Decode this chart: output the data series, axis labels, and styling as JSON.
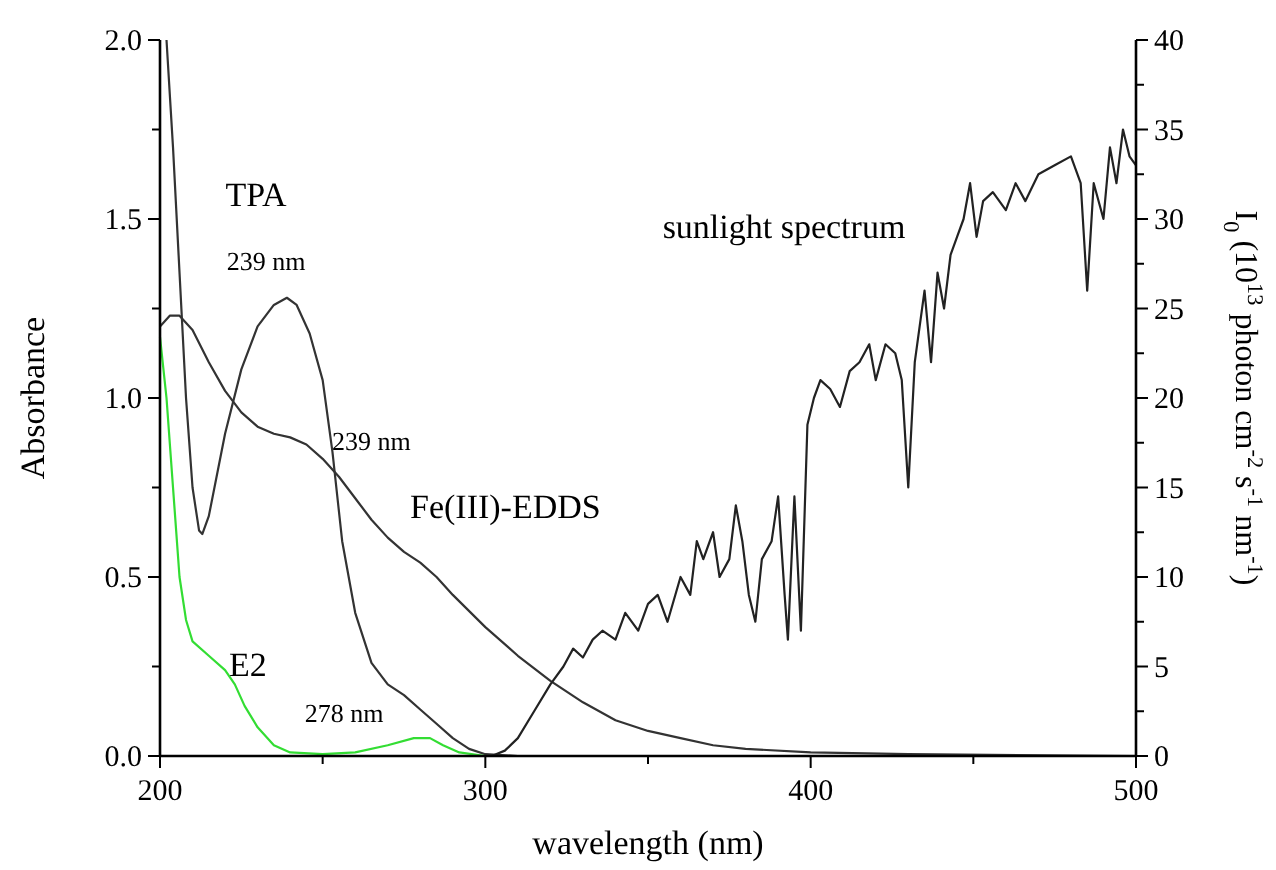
{
  "chart_data": {
    "type": "line",
    "xlabel": "wavelength (nm)",
    "ylabel": "Absorbance",
    "y2label": "I$_{0}$ (10$^{13}$ photon cm$^{-2}$ s$^{-1}$ nm$^{-1}$)",
    "xlim": [
      200,
      500
    ],
    "xticks": [
      200,
      {
        "value": 250,
        "label": null
      },
      300,
      {
        "value": 350,
        "label": null
      },
      400,
      {
        "value": 450,
        "label": null
      },
      500
    ],
    "ylim": [
      0,
      2.0
    ],
    "yticks": [
      {
        "value": 0,
        "label": "0.0"
      },
      {
        "value": 0.25,
        "label": null
      },
      0.5,
      {
        "value": 0.75,
        "label": null
      },
      {
        "value": 1,
        "label": "1.0"
      },
      {
        "value": 1.25,
        "label": null
      },
      1.5,
      {
        "value": 1.75,
        "label": null
      },
      {
        "value": 2,
        "label": "2.0"
      }
    ],
    "y2lim": [
      0,
      40
    ],
    "y2ticks": [
      0,
      {
        "value": 2.5,
        "label": null
      },
      5,
      {
        "value": 7.5,
        "label": null
      },
      10,
      {
        "value": 12.5,
        "label": null
      },
      15,
      {
        "value": 17.5,
        "label": null
      },
      20,
      {
        "value": 22.5,
        "label": null
      },
      25,
      {
        "value": 27.5,
        "label": null
      },
      30,
      {
        "value": 32.5,
        "label": null
      },
      35,
      {
        "value": 37.5,
        "label": null
      },
      40
    ],
    "grid": false,
    "marker": "none",
    "line_style": "solid",
    "series": [
      {
        "name": "TPA",
        "color": "#333333",
        "x": [
          202,
          204,
          206,
          208,
          210,
          212,
          213,
          215,
          220,
          225,
          230,
          235,
          239,
          242,
          246,
          250,
          253,
          256,
          260,
          265,
          270,
          275,
          280,
          285,
          290,
          295,
          300,
          310,
          350,
          400,
          500
        ],
        "values": [
          2.0,
          1.7,
          1.35,
          1.0,
          0.75,
          0.63,
          0.62,
          0.67,
          0.9,
          1.08,
          1.2,
          1.26,
          1.28,
          1.26,
          1.18,
          1.05,
          0.85,
          0.6,
          0.4,
          0.26,
          0.2,
          0.17,
          0.13,
          0.09,
          0.05,
          0.02,
          0.005,
          0,
          0,
          0,
          0
        ]
      },
      {
        "name": "Fe(III)-EDDS",
        "color": "#333333",
        "x": [
          200,
          203,
          206,
          210,
          215,
          220,
          225,
          230,
          235,
          240,
          245,
          250,
          255,
          260,
          265,
          270,
          275,
          280,
          285,
          290,
          300,
          310,
          320,
          330,
          340,
          350,
          360,
          370,
          380,
          400,
          430,
          500
        ],
        "values": [
          1.2,
          1.23,
          1.23,
          1.19,
          1.1,
          1.02,
          0.96,
          0.92,
          0.9,
          0.89,
          0.87,
          0.83,
          0.78,
          0.72,
          0.66,
          0.61,
          0.57,
          0.54,
          0.5,
          0.45,
          0.36,
          0.28,
          0.21,
          0.15,
          0.1,
          0.07,
          0.05,
          0.03,
          0.02,
          0.01,
          0.005,
          0
        ]
      },
      {
        "name": "E2",
        "color": "#33dd33",
        "x": [
          200,
          202,
          204,
          206,
          208,
          210,
          215,
          220,
          223,
          226,
          230,
          235,
          240,
          250,
          260,
          270,
          278,
          283,
          287,
          292,
          300,
          400
        ],
        "values": [
          1.17,
          1.0,
          0.75,
          0.5,
          0.38,
          0.32,
          0.28,
          0.24,
          0.2,
          0.14,
          0.08,
          0.03,
          0.01,
          0.005,
          0.01,
          0.03,
          0.05,
          0.05,
          0.03,
          0.01,
          0,
          0
        ]
      },
      {
        "name": "sunlight spectrum",
        "color": "#222222",
        "axis": "y2",
        "x": [
          302,
          306,
          310,
          315,
          320,
          324,
          327,
          330,
          333,
          336,
          340,
          343,
          347,
          350,
          353,
          356,
          360,
          363,
          365,
          367,
          370,
          372,
          375,
          377,
          379,
          381,
          383,
          385,
          388,
          390,
          392,
          393,
          395,
          397,
          399,
          401,
          403,
          406,
          409,
          412,
          415,
          418,
          420,
          423,
          426,
          428,
          430,
          432,
          435,
          437,
          439,
          441,
          443,
          445,
          447,
          449,
          451,
          453,
          456,
          460,
          463,
          466,
          470,
          475,
          480,
          483,
          485,
          487,
          490,
          492,
          494,
          496,
          498,
          500
        ],
        "values": [
          0,
          0.3,
          1,
          2.5,
          4,
          5,
          6,
          5.5,
          6.5,
          7,
          6.5,
          8,
          7,
          8.5,
          9,
          7.5,
          10,
          9,
          12,
          11,
          12.5,
          10,
          11,
          14,
          12,
          9,
          7.5,
          11,
          12,
          14.5,
          9,
          6.5,
          14.5,
          7,
          18.5,
          20,
          21,
          20.5,
          19.5,
          21.5,
          22,
          23,
          21,
          23,
          22.5,
          21,
          15,
          22,
          26,
          22,
          27,
          25,
          28,
          29,
          30,
          32,
          29,
          31,
          31.5,
          30.5,
          32,
          31,
          32.5,
          33,
          33.5,
          32,
          26,
          32,
          30,
          34,
          32,
          35,
          33.5,
          33
        ]
      }
    ],
    "annotations": [
      "239 nm",
      "239 nm",
      "278 nm"
    ]
  }
}
